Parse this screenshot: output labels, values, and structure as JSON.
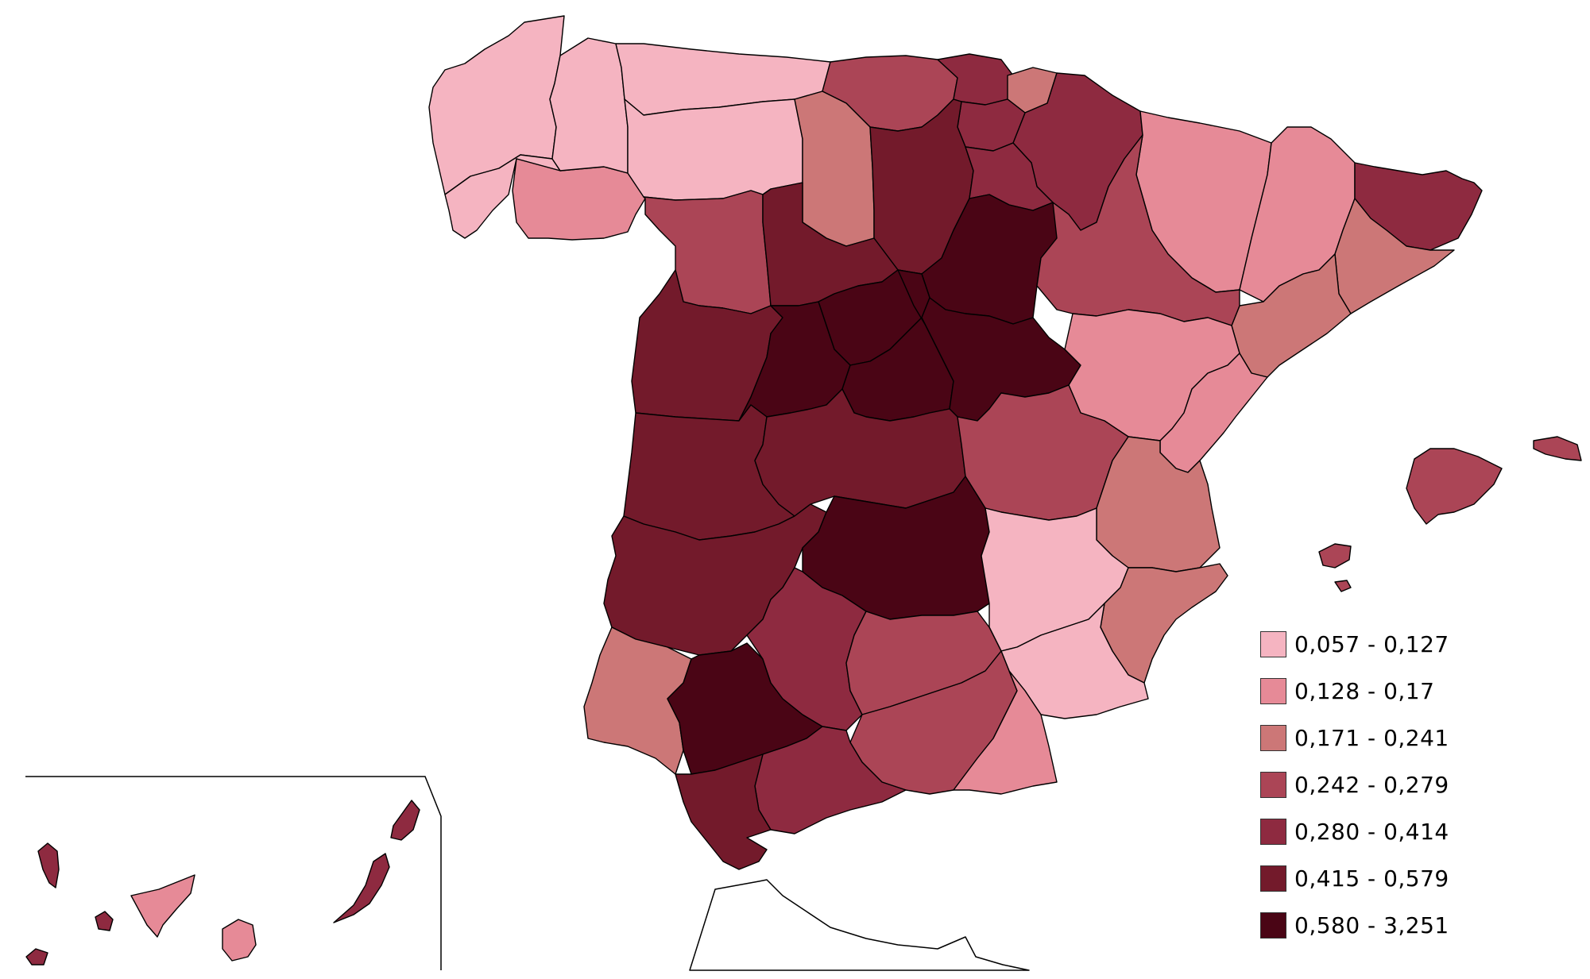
{
  "map": {
    "type": "choropleth",
    "region": "Spain (provinces)",
    "legend_position": "bottom-right",
    "classes": [
      {
        "range": "0,057 - 0,127",
        "color": "#f5b4c1"
      },
      {
        "range": "0,128 - 0,17",
        "color": "#e68a97"
      },
      {
        "range": "0,171 - 0,241",
        "color": "#cc7777"
      },
      {
        "range": "0,242 - 0,279",
        "color": "#ab4556"
      },
      {
        "range": "0,280 - 0,414",
        "color": "#8e2a40"
      },
      {
        "range": "0,415 - 0,579",
        "color": "#731a2b"
      },
      {
        "range": "0,580 - 3,251",
        "color": "#4a0515"
      }
    ],
    "provinces": [
      {
        "name": "A Coruña",
        "class": 0
      },
      {
        "name": "Lugo",
        "class": 0
      },
      {
        "name": "Asturias",
        "class": 0
      },
      {
        "name": "León",
        "class": 0
      },
      {
        "name": "Pontevedra",
        "class": 0
      },
      {
        "name": "Ourense",
        "class": 1
      },
      {
        "name": "Cantabria",
        "class": 3
      },
      {
        "name": "Bizkaia",
        "class": 4
      },
      {
        "name": "Gipuzkoa",
        "class": 2
      },
      {
        "name": "Navarra",
        "class": 4
      },
      {
        "name": "Araba",
        "class": 4
      },
      {
        "name": "Palencia",
        "class": 2
      },
      {
        "name": "Burgos",
        "class": 5
      },
      {
        "name": "La Rioja",
        "class": 4
      },
      {
        "name": "Zamora",
        "class": 3
      },
      {
        "name": "Valladolid",
        "class": 5
      },
      {
        "name": "Soria",
        "class": 6
      },
      {
        "name": "Huesca",
        "class": 1
      },
      {
        "name": "Lleida",
        "class": 1
      },
      {
        "name": "Girona",
        "class": 4
      },
      {
        "name": "Barcelona",
        "class": 2
      },
      {
        "name": "Tarragona",
        "class": 2
      },
      {
        "name": "Zaragoza",
        "class": 3
      },
      {
        "name": "Salamanca",
        "class": 5
      },
      {
        "name": "Segovia",
        "class": 6
      },
      {
        "name": "Ávila",
        "class": 6
      },
      {
        "name": "Madrid",
        "class": 6
      },
      {
        "name": "Guadalajara",
        "class": 6
      },
      {
        "name": "Teruel",
        "class": 1
      },
      {
        "name": "Castellón",
        "class": 1
      },
      {
        "name": "Cáceres",
        "class": 5
      },
      {
        "name": "Toledo",
        "class": 5
      },
      {
        "name": "Cuenca",
        "class": 3
      },
      {
        "name": "Valencia",
        "class": 2
      },
      {
        "name": "Badajoz",
        "class": 5
      },
      {
        "name": "Ciudad Real",
        "class": 6
      },
      {
        "name": "Albacete",
        "class": 0
      },
      {
        "name": "Alicante",
        "class": 2
      },
      {
        "name": "Murcia",
        "class": 0
      },
      {
        "name": "Huelva",
        "class": 2
      },
      {
        "name": "Sevilla",
        "class": 6
      },
      {
        "name": "Córdoba",
        "class": 4
      },
      {
        "name": "Jaén",
        "class": 3
      },
      {
        "name": "Granada",
        "class": 3
      },
      {
        "name": "Almería",
        "class": 1
      },
      {
        "name": "Málaga",
        "class": 4
      },
      {
        "name": "Cádiz",
        "class": 5
      },
      {
        "name": "Mallorca",
        "class": 3
      },
      {
        "name": "Menorca",
        "class": 3
      },
      {
        "name": "Ibiza",
        "class": 3
      },
      {
        "name": "Formentera",
        "class": 3
      },
      {
        "name": "La Palma",
        "class": 4
      },
      {
        "name": "El Hierro",
        "class": 4
      },
      {
        "name": "La Gomera",
        "class": 4
      },
      {
        "name": "Tenerife",
        "class": 1
      },
      {
        "name": "Gran Canaria",
        "class": 1
      },
      {
        "name": "Fuerteventura",
        "class": 4
      },
      {
        "name": "Lanzarote",
        "class": 4
      },
      {
        "name": "Ceuta",
        "class": null
      }
    ]
  }
}
